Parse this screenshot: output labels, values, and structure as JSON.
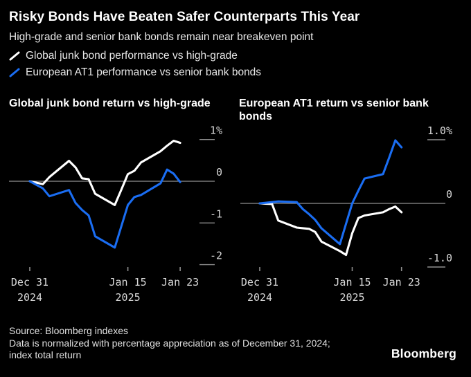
{
  "header": {
    "title": "Risky Bonds Have Beaten Safer Counterparts This Year",
    "subtitle": "High-grade and senior bank bonds remain near breakeven point",
    "legend": [
      {
        "label": "Global junk bond performance vs high-grade",
        "color": "#ffffff"
      },
      {
        "label": "European AT1 performance vs senior bank bonds",
        "color": "#1a6df2"
      }
    ]
  },
  "chart_data": [
    {
      "type": "line",
      "title": "Global junk bond return vs high-grade",
      "x": [
        "Dec 31",
        "Jan 2",
        "Jan 3",
        "Jan 6",
        "Jan 7",
        "Jan 8",
        "Jan 9",
        "Jan 10",
        "Jan 13",
        "Jan 14",
        "Jan 15",
        "Jan 16",
        "Jan 17",
        "Jan 20",
        "Jan 21",
        "Jan 22",
        "Jan 23"
      ],
      "x_days_from_start": [
        0,
        2,
        3,
        6,
        7,
        8,
        9,
        10,
        13,
        14,
        15,
        16,
        17,
        20,
        21,
        22,
        23
      ],
      "x_ticks": [
        {
          "day": 0,
          "line1": "Dec 31",
          "line2": "2024"
        },
        {
          "day": 15,
          "line1": "Jan 15",
          "line2": "2025"
        },
        {
          "day": 23,
          "line1": "Jan 23",
          "line2": ""
        }
      ],
      "y_ticks": [
        {
          "value": 1,
          "label": "1%"
        },
        {
          "value": 0,
          "label": "0"
        },
        {
          "value": -1,
          "label": "-1"
        },
        {
          "value": -2,
          "label": "-2"
        }
      ],
      "ylim": [
        -2.2,
        1.3
      ],
      "y_unit": "%",
      "grid": "zero-line-only",
      "legend_position": "top-of-figure",
      "series": [
        {
          "name": "Global junk bond performance vs high-grade",
          "color": "#ffffff",
          "values": [
            0,
            -0.07,
            0.1,
            0.49,
            0.33,
            0.07,
            0.05,
            -0.3,
            -0.57,
            -0.2,
            0.17,
            0.25,
            0.45,
            0.72,
            0.85,
            0.97,
            0.92
          ]
        },
        {
          "name": "European AT1 performance vs senior bank bonds",
          "color": "#1a6df2",
          "values": [
            0,
            -0.17,
            -0.36,
            -0.21,
            -0.52,
            -0.69,
            -0.82,
            -1.32,
            -1.59,
            -1.08,
            -0.57,
            -0.38,
            -0.33,
            -0.05,
            0.28,
            0.18,
            -0.02
          ]
        }
      ]
    },
    {
      "type": "line",
      "title": "European AT1 return vs senior bank bonds",
      "x": [
        "Dec 31",
        "Jan 2",
        "Jan 3",
        "Jan 6",
        "Jan 7",
        "Jan 8",
        "Jan 9",
        "Jan 10",
        "Jan 13",
        "Jan 14",
        "Jan 15",
        "Jan 16",
        "Jan 17",
        "Jan 20",
        "Jan 21",
        "Jan 22",
        "Jan 23"
      ],
      "x_days_from_start": [
        0,
        2,
        3,
        6,
        7,
        8,
        9,
        10,
        13,
        14,
        15,
        16,
        17,
        20,
        21,
        22,
        23
      ],
      "x_ticks": [
        {
          "day": 0,
          "line1": "Dec 31",
          "line2": "2024"
        },
        {
          "day": 15,
          "line1": "Jan 15",
          "line2": "2025"
        },
        {
          "day": 23,
          "line1": "Jan 23",
          "line2": ""
        }
      ],
      "y_ticks": [
        {
          "value": 1,
          "label": "1.0%"
        },
        {
          "value": 0,
          "label": "0"
        },
        {
          "value": -1,
          "label": "-1.0"
        }
      ],
      "ylim": [
        -1.2,
        1.3
      ],
      "y_unit": "%",
      "grid": "zero-line-only",
      "legend_position": "top-of-figure",
      "series": [
        {
          "name": "Global junk bond performance vs high-grade",
          "color": "#ffffff",
          "values": [
            0,
            -0.01,
            -0.27,
            -0.38,
            -0.39,
            -0.4,
            -0.45,
            -0.6,
            -0.75,
            -0.81,
            -0.47,
            -0.23,
            -0.19,
            -0.14,
            -0.09,
            -0.05,
            -0.14
          ]
        },
        {
          "name": "European AT1 performance vs senior bank bonds",
          "color": "#1a6df2",
          "values": [
            0,
            0.02,
            0.03,
            0.02,
            -0.09,
            -0.17,
            -0.26,
            -0.39,
            -0.64,
            -0.32,
            0.0,
            0.2,
            0.39,
            0.46,
            0.72,
            0.99,
            0.88
          ]
        }
      ]
    }
  ],
  "footer": {
    "source": "Source: Bloomberg indexes",
    "note_line1": "Data is normalized with percentage appreciation as of December 31, 2024;",
    "note_line2": "index total return",
    "brand": "Bloomberg"
  },
  "colors": {
    "background": "#000000",
    "accent_blue": "#1a6df2",
    "line_white": "#ffffff",
    "gridline": "#8f8f8f",
    "axis_text": "#d9d9d9"
  }
}
